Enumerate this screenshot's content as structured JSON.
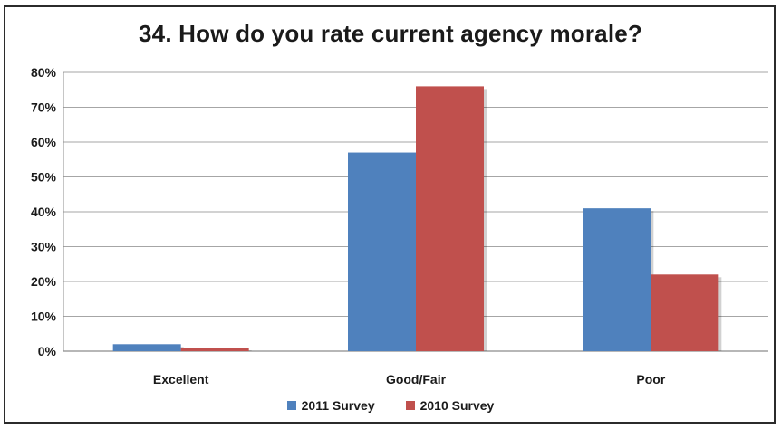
{
  "chart_data": {
    "type": "bar",
    "title": "34.  How do you rate current agency morale?",
    "categories": [
      "Excellent",
      "Good/Fair",
      "Poor"
    ],
    "series": [
      {
        "name": "2011 Survey",
        "values": [
          2,
          57,
          41
        ],
        "color": "#4f81bd"
      },
      {
        "name": "2010 Survey",
        "values": [
          1,
          76,
          22
        ],
        "color": "#c0504d"
      }
    ],
    "ylim": [
      0,
      80
    ],
    "yticks": [
      "0%",
      "10%",
      "20%",
      "30%",
      "40%",
      "50%",
      "60%",
      "70%",
      "80%"
    ],
    "grid": true,
    "legend": "bottom"
  }
}
